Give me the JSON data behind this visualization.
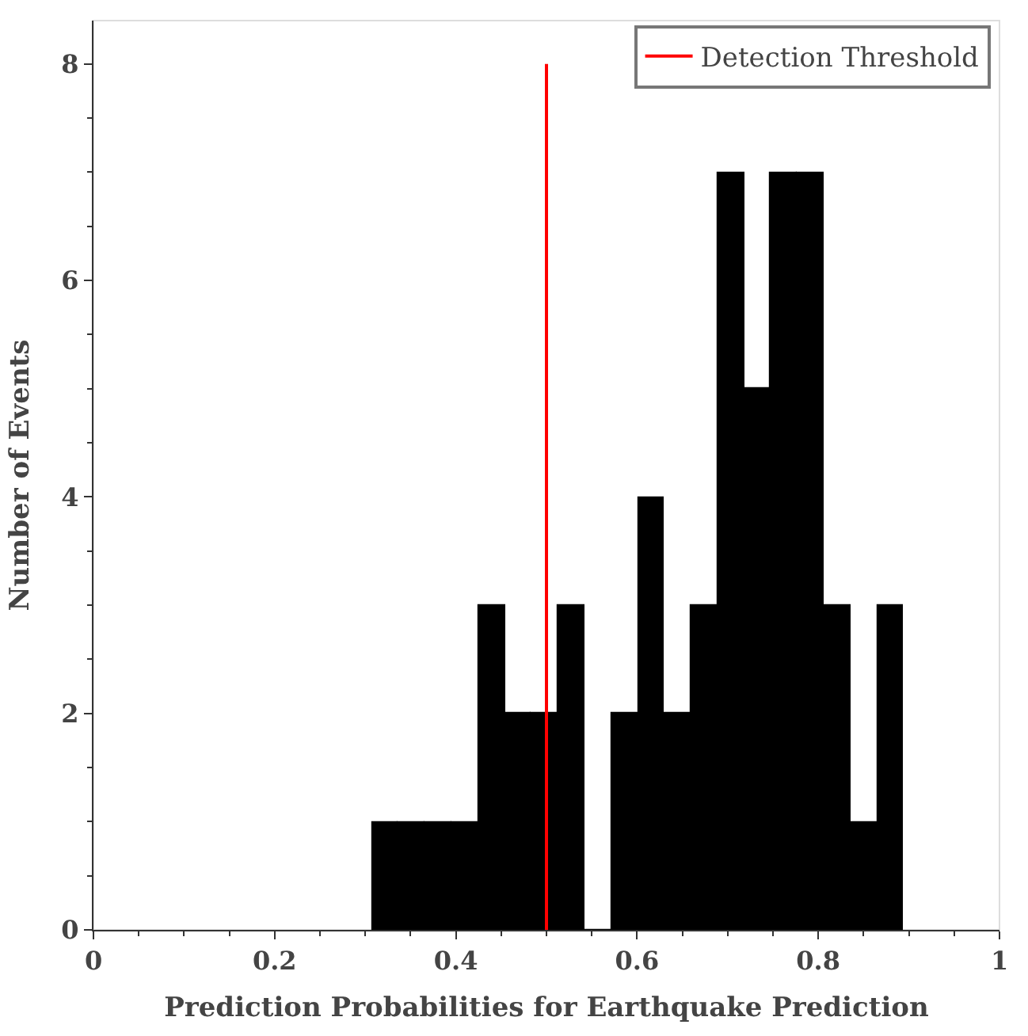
{
  "chart_data": {
    "type": "histogram",
    "xlabel": "Prediction Probabilities for Earthquake Prediction",
    "ylabel": "Number of Events",
    "bins": [
      0.307,
      0.336,
      0.366,
      0.395,
      0.424,
      0.454,
      0.483,
      0.512,
      0.542,
      0.571,
      0.601,
      0.63,
      0.659,
      0.689,
      0.718,
      0.747,
      0.777,
      0.806,
      0.835,
      0.865,
      0.894
    ],
    "values": [
      1,
      1,
      1,
      1,
      3,
      2,
      2,
      3,
      0,
      2,
      4,
      2,
      3,
      7,
      5,
      7,
      7,
      3,
      1,
      3
    ],
    "color": "#000000",
    "xlim": [
      0,
      1
    ],
    "xticks": [
      0,
      0.2,
      0.4,
      0.6,
      0.8,
      1
    ],
    "ylim": [
      0,
      8.4
    ],
    "yticks": [
      0,
      2,
      4,
      6,
      8
    ],
    "series": [
      {
        "type": "line",
        "name": "Detection Threshold",
        "color": "#ff0000",
        "x": [
          0.5,
          0.5
        ],
        "values": [
          0,
          8
        ]
      }
    ],
    "legend": "top right",
    "grid": false
  }
}
